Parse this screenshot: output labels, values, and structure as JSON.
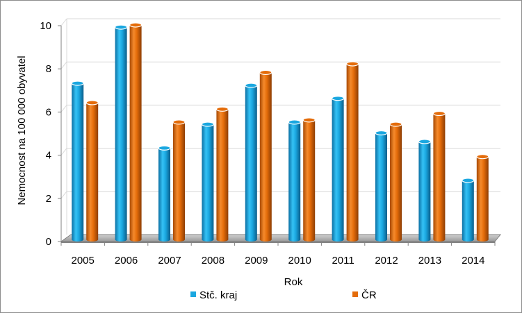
{
  "chart_data": {
    "type": "bar",
    "title": "",
    "xlabel": "Rok",
    "ylabel": "Nemocnost na 100 000 obyvatel",
    "categories": [
      "2005",
      "2006",
      "2007",
      "2008",
      "2009",
      "2010",
      "2011",
      "2012",
      "2013",
      "2014"
    ],
    "series": [
      {
        "name": "Stč. kraj",
        "color": "#1aa7e0",
        "values": [
          7.3,
          9.9,
          4.3,
          5.4,
          7.2,
          5.5,
          6.6,
          5.0,
          4.6,
          2.8
        ]
      },
      {
        "name": "ČR",
        "color": "#e46c0a",
        "values": [
          6.4,
          10.0,
          5.5,
          6.1,
          7.8,
          5.6,
          8.2,
          5.4,
          5.9,
          3.9
        ]
      }
    ],
    "ylim": [
      0,
      10
    ],
    "yticks": [
      "0",
      "2",
      "4",
      "6",
      "8",
      "10"
    ],
    "grid": true,
    "legend_position": "bottom",
    "style": "3d-cylinder"
  }
}
